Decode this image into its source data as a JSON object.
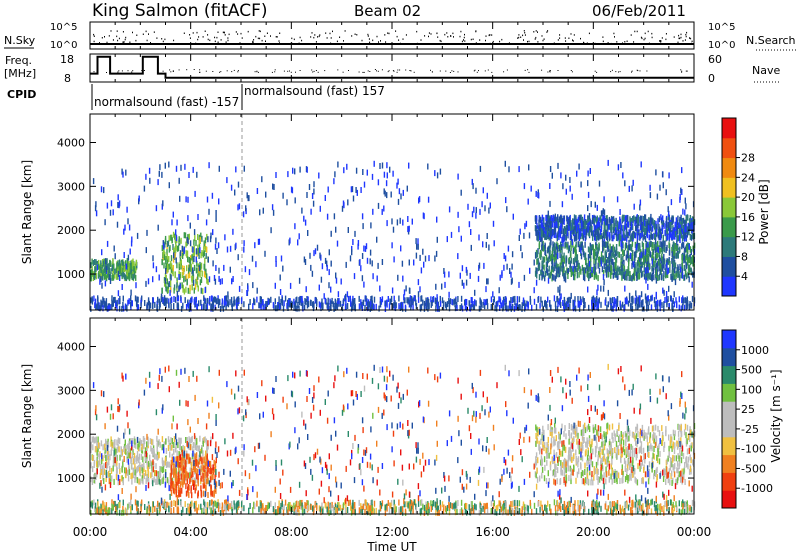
{
  "header": {
    "title": "King Salmon (fitACF)",
    "beam": "Beam 02",
    "date": "06/Feb/2011"
  },
  "top_panels": {
    "nsky_label": "N.Sky",
    "nsky_ticks": [
      "10^5",
      "10^0"
    ],
    "nsearch_label": "N.Search",
    "freq_label": "Freq.",
    "freq_unit": "[MHz]",
    "freq_ticks": [
      "18",
      "8"
    ],
    "nave_label": "Nave",
    "nave_ticks": [
      "60",
      "0"
    ],
    "cpid_label": "CPID",
    "cpid_segments": [
      {
        "label": "normalsound (fast) -157"
      },
      {
        "label": "normalsound (fast) 157"
      }
    ]
  },
  "colors": {
    "power_scale": [
      "#1f37ff",
      "#1f4fa0",
      "#2d7a7a",
      "#3a9a4a",
      "#8ac838",
      "#f0c020",
      "#f08a10",
      "#f05010",
      "#e81010"
    ],
    "velocity_scale": [
      "#e81010",
      "#f04010",
      "#f08020",
      "#f0c040",
      "#bdbdbd",
      "#bdbdbd",
      "#70c040",
      "#2a8a6a",
      "#1f4fa0",
      "#1f37ff"
    ]
  },
  "chart_data": [
    {
      "type": "heatmap",
      "name": "power",
      "ylabel": "Slant Range [km]",
      "ylim": [
        180,
        4650
      ],
      "yticks": [
        "1000",
        "2000",
        "3000",
        "4000"
      ],
      "xlabel": "Time UT",
      "xticks": [
        "00:00",
        "04:00",
        "08:00",
        "12:00",
        "16:00",
        "20:00",
        "00:00"
      ],
      "colorbar_label": "Power [dB]",
      "colorbar_ticks": [
        "4",
        "8",
        "12",
        "16",
        "20",
        "24",
        "28"
      ],
      "features": [
        {
          "time_range": [
            "00:00",
            "01:50"
          ],
          "range_km": [
            900,
            1300
          ],
          "value_db": 14
        },
        {
          "time_range": [
            "02:50",
            "04:40"
          ],
          "range_km": [
            600,
            1900
          ],
          "value_db": 16
        },
        {
          "time_range": [
            "17:40",
            "24:00"
          ],
          "range_km": [
            900,
            1700
          ],
          "value_db": 10
        },
        {
          "time_range": [
            "17:40",
            "24:00"
          ],
          "range_km": [
            1800,
            2300
          ],
          "value_db": 6
        }
      ]
    },
    {
      "type": "heatmap",
      "name": "velocity",
      "ylabel": "Slant Range [km]",
      "ylim": [
        180,
        4650
      ],
      "yticks": [
        "1000",
        "2000",
        "3000",
        "4000"
      ],
      "xlabel": "Time UT",
      "xticks": [
        "00:00",
        "04:00",
        "08:00",
        "12:00",
        "16:00",
        "20:00",
        "00:00"
      ],
      "colorbar_label": "Velocity [m s⁻¹]",
      "colorbar_ticks": [
        "1000",
        "500",
        "100",
        "25",
        "-25",
        "-100",
        "-500",
        "-1000"
      ],
      "features": [
        {
          "time_range": [
            "00:00",
            "04:40"
          ],
          "range_km": [
            900,
            1900
          ],
          "value_ms": 0
        },
        {
          "time_range": [
            "03:10",
            "05:00"
          ],
          "range_km": [
            600,
            1500
          ],
          "value_ms": -300
        },
        {
          "time_range": [
            "17:40",
            "24:00"
          ],
          "range_km": [
            900,
            2200
          ],
          "value_ms": 0
        }
      ]
    }
  ]
}
